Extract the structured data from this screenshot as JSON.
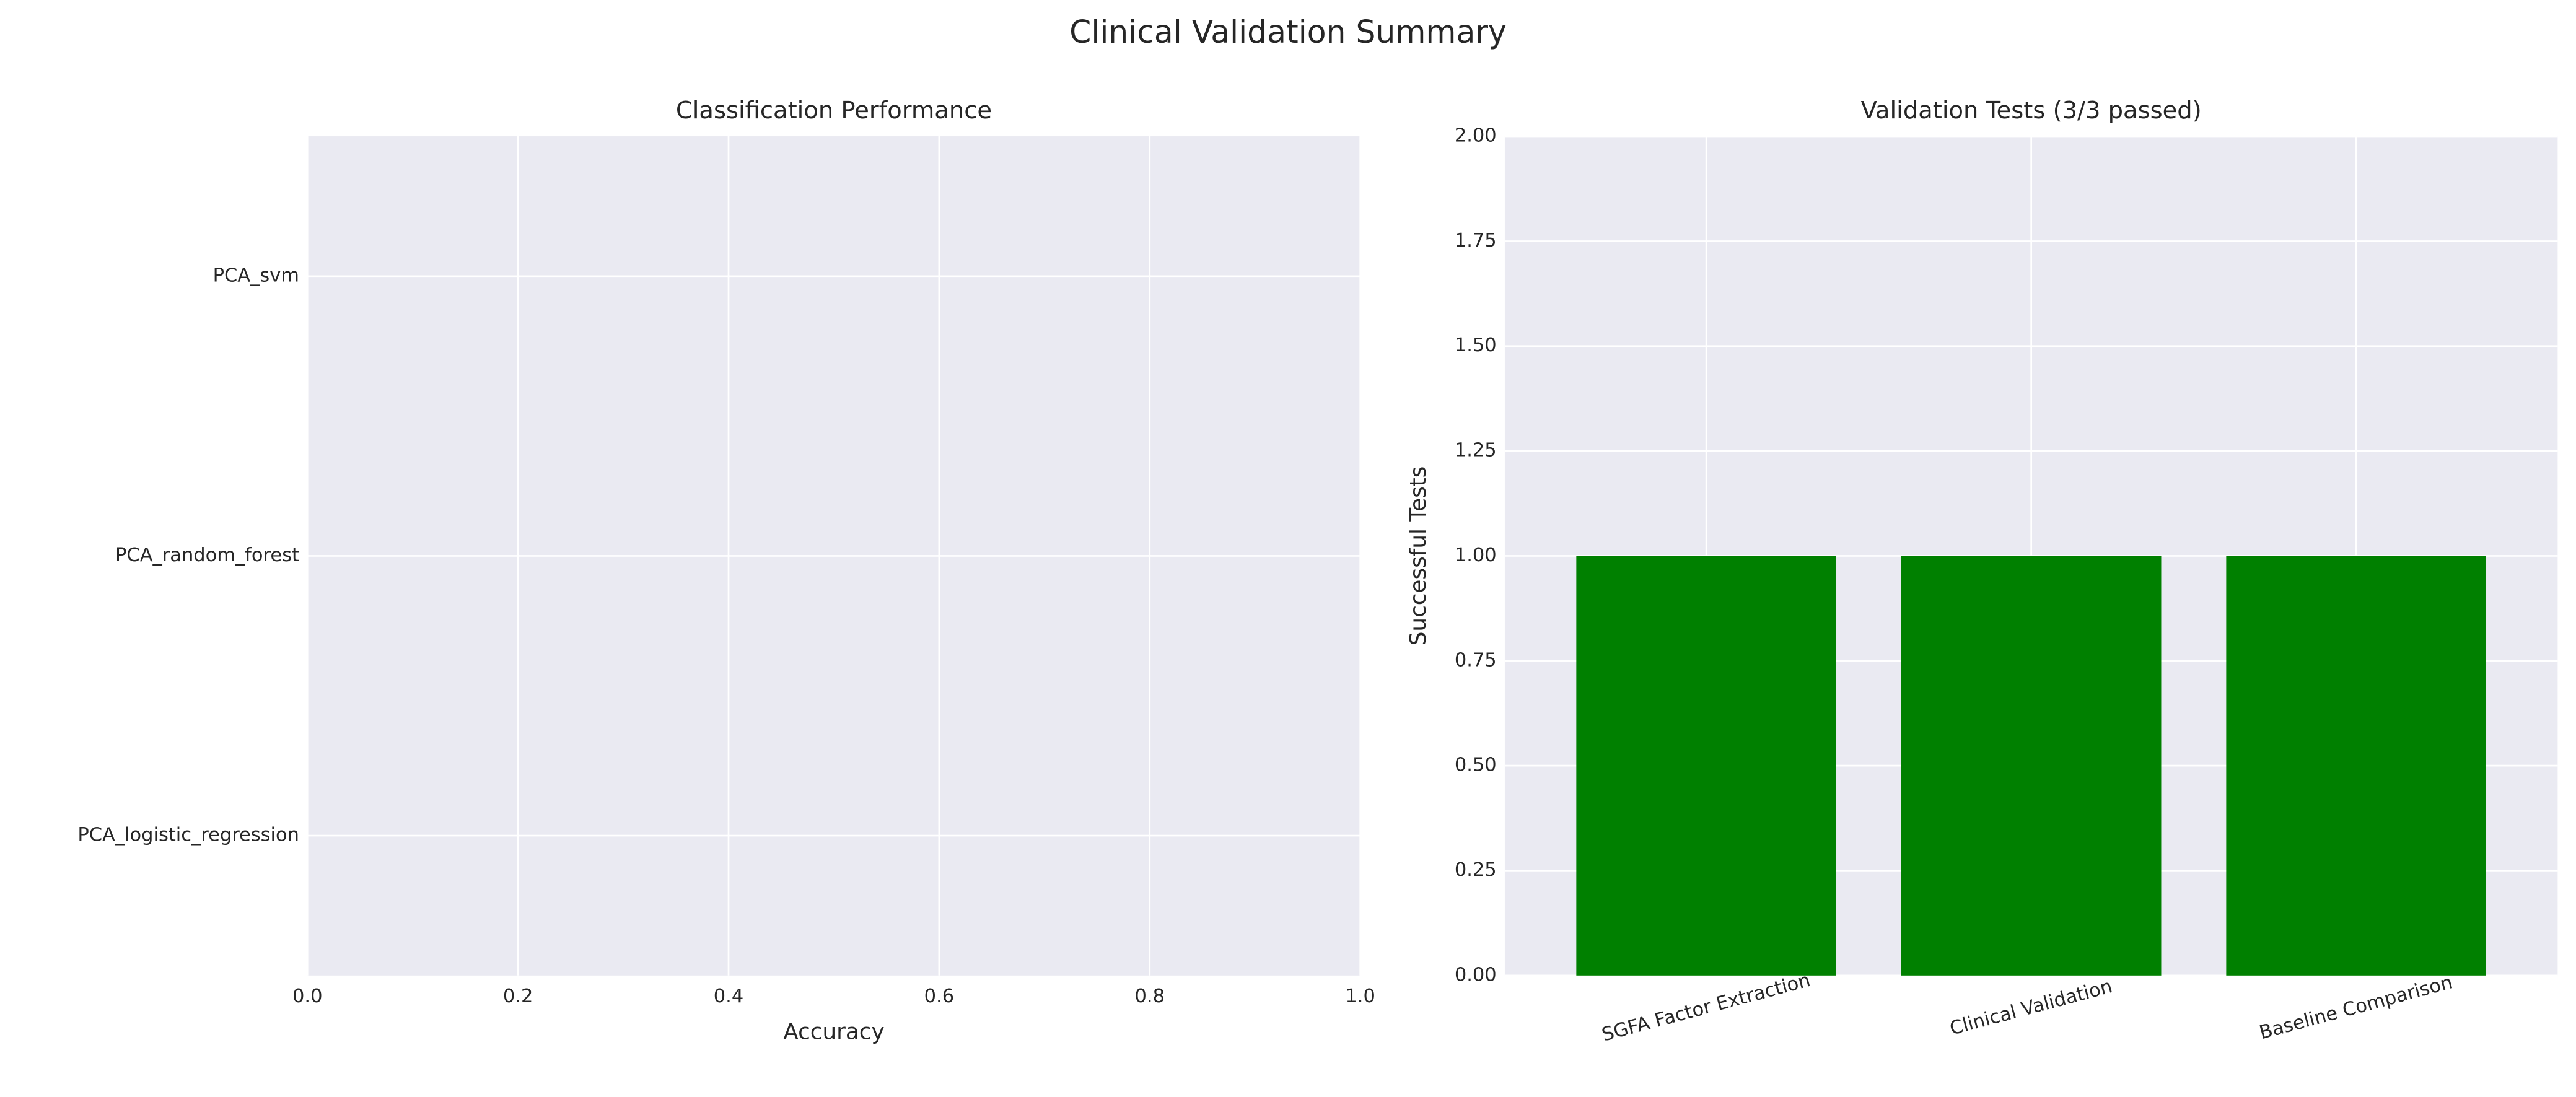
{
  "title": "Clinical Validation Summary",
  "chart_data": [
    {
      "type": "barh",
      "title": "Classification Performance",
      "xlabel": "Accuracy",
      "categories": [
        "PCA_svm",
        "PCA_random_forest",
        "PCA_logistic_regression"
      ],
      "values": [
        0,
        0,
        0
      ],
      "xlim": [
        0,
        1
      ],
      "xticks": [
        {
          "value": 0,
          "label": "0.0"
        },
        0.2,
        0.4,
        0.6,
        0.8,
        {
          "value": 1,
          "label": "1.0"
        }
      ],
      "grid": true
    },
    {
      "type": "bar",
      "title": "Validation Tests (3/3 passed)",
      "ylabel": "Successful Tests",
      "categories": [
        "SGFA Factor Extraction",
        "Clinical Validation",
        "Baseline Comparison"
      ],
      "values": [
        1,
        1,
        1
      ],
      "color": "#008000",
      "ylim": [
        0,
        2
      ],
      "yticks": [
        {
          "value": 0,
          "label": "0.00"
        },
        {
          "value": 0.25,
          "label": "0.25"
        },
        {
          "value": 0.5,
          "label": "0.50"
        },
        {
          "value": 0.75,
          "label": "0.75"
        },
        {
          "value": 1,
          "label": "1.00"
        },
        {
          "value": 1.25,
          "label": "1.25"
        },
        {
          "value": 1.5,
          "label": "1.50"
        },
        {
          "value": 1.75,
          "label": "1.75"
        },
        {
          "value": 2,
          "label": "2.00"
        }
      ],
      "grid": true
    }
  ]
}
